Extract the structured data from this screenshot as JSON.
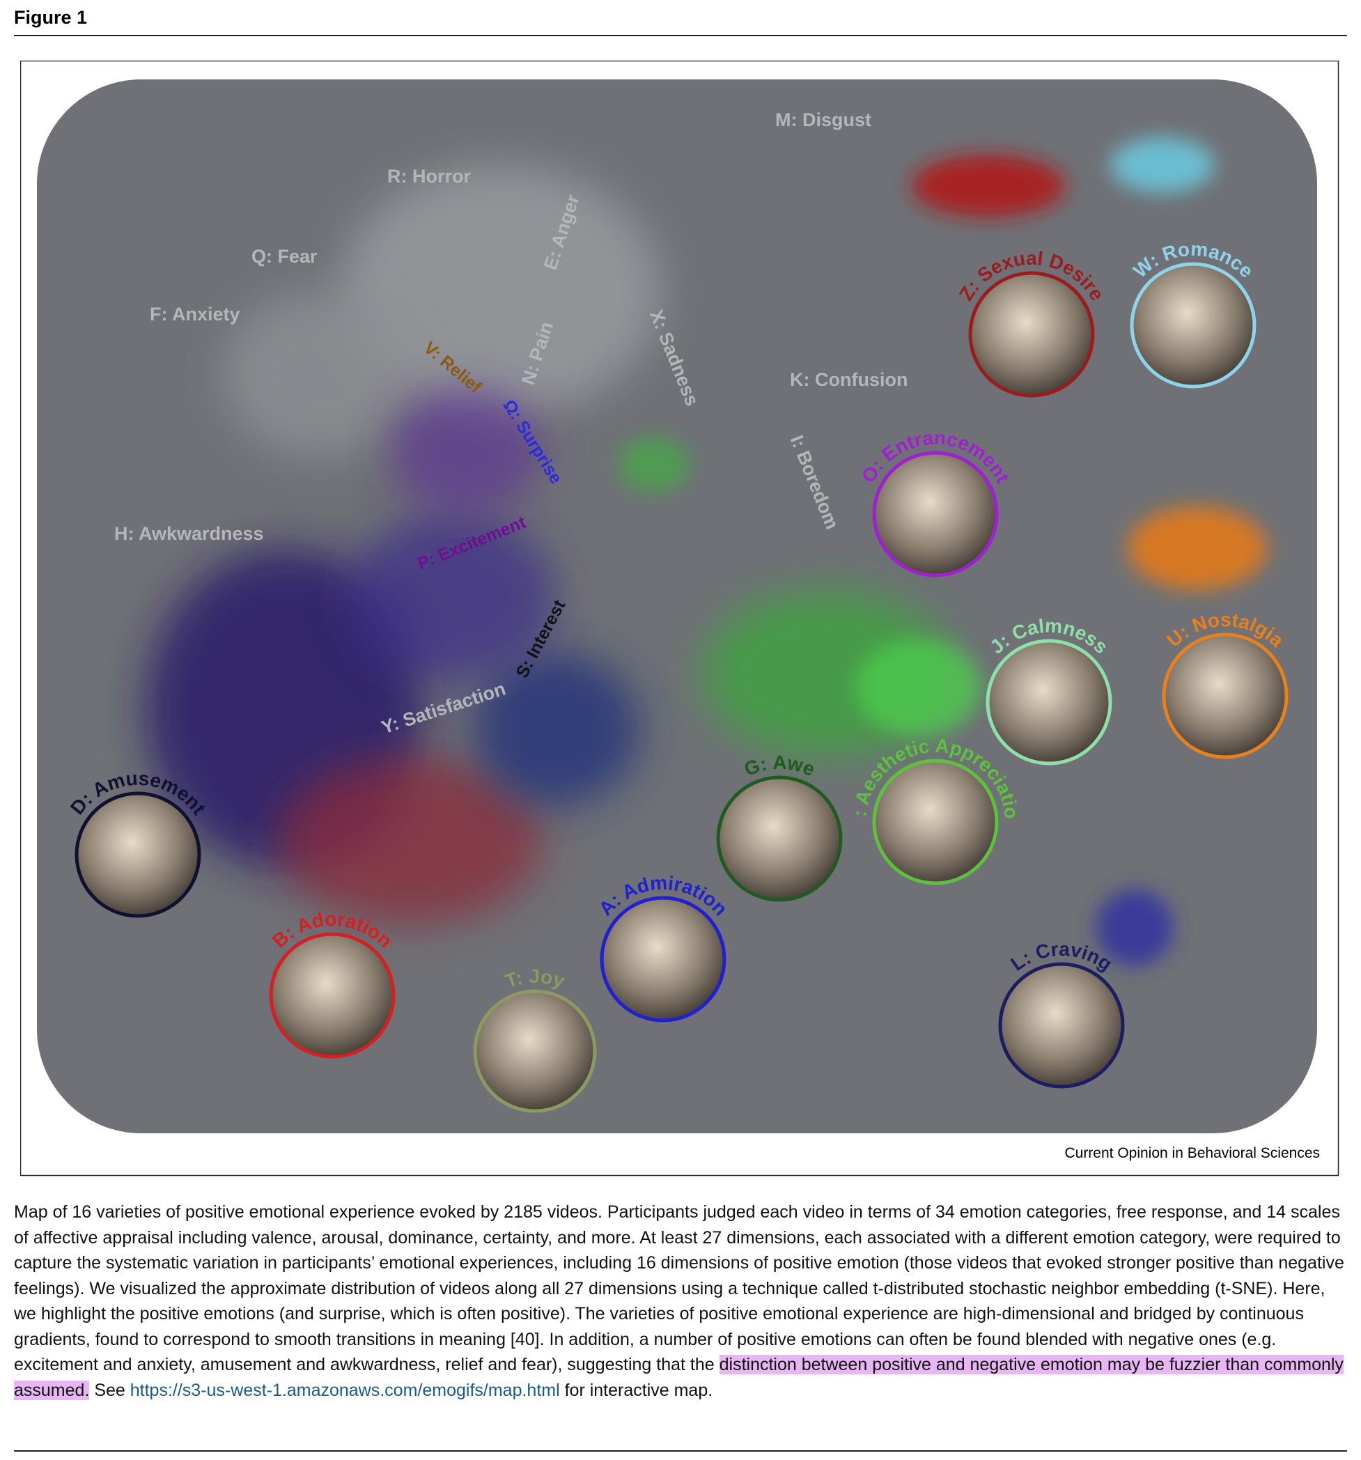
{
  "header": {
    "title": "Figure 1"
  },
  "map": {
    "gray_labels": [
      "M: Disgust",
      "R: Horror",
      "Q: Fear",
      "F: Anxiety",
      "K: Confusion",
      "H: Awkwardness",
      "E: Anger",
      "N: Pain",
      "X: Sadness",
      "I: Boredom",
      "Y: Satisfaction"
    ],
    "inner_labels": [
      "V: Relief",
      "Ω: Surprise",
      "P: Excitement",
      "S: Interest"
    ],
    "clusters": [
      {
        "label": "Z: Sexual Desire",
        "color": "#9b1c1c"
      },
      {
        "label": "W: Romance",
        "color": "#8fd3ea"
      },
      {
        "label": "O: Entrancement",
        "color": "#a020d0"
      },
      {
        "label": "J: Calmness",
        "color": "#8fe0a8"
      },
      {
        "label": "U: Nostalgia",
        "color": "#e8801e"
      },
      {
        "label": "G: Awe",
        "color": "#1f5a1f"
      },
      {
        "label": "C: Aesthetic Appreciation",
        "color": "#5fc040"
      },
      {
        "label": "D: Amusement",
        "color": "#101030"
      },
      {
        "label": "B: Adoration",
        "color": "#d42020"
      },
      {
        "label": "T: Joy",
        "color": "#8a9a60"
      },
      {
        "label": "A: Admiration",
        "color": "#2020d0"
      },
      {
        "label": "L: Craving",
        "color": "#1c1c60"
      }
    ],
    "credit": "Current Opinion in Behavioral Sciences"
  },
  "caption": {
    "text": "Map of 16 varieties of positive emotional experience evoked by 2185 videos. Participants judged each video in terms of 34 emotion categories, free response, and 14 scales of affective appraisal including valence, arousal, dominance, certainty, and more. At least 27 dimensions, each associated with a different emotion category, were required to capture the systematic variation in participants’ emotional experiences, including 16 dimensions of positive emotion (those videos that evoked stronger positive than negative feelings). We visualized the approximate distribution of videos along all 27 dimensions using a technique called t-distributed stochastic neighbor embedding (t-SNE). Here, we highlight the positive emotions (and surprise, which is often positive). The varieties of positive emotional experience are high-dimensional and bridged by continuous gradients, found to correspond to smooth transitions in meaning [40]. In addition, a number of positive emotions can often be found blended with negative ones (e.g. excitement and anxiety, amusement and awkwardness, relief and fear), suggesting that the ",
    "highlight": "distinction between positive and negative emotion may be fuzzier than commonly assumed.",
    "see": " See ",
    "link": "https://s3-us-west-1.amazonaws.com/emogifs/map.html",
    "after": " for interactive map."
  }
}
